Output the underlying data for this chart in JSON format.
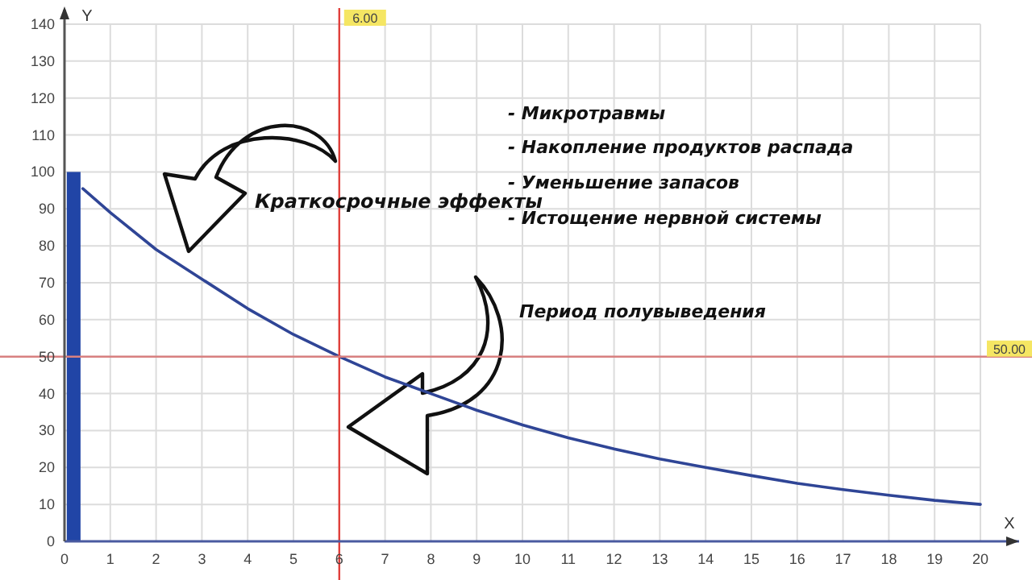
{
  "chart_data": {
    "type": "line",
    "xlabel": "X",
    "ylabel": "Y",
    "xlim": [
      0,
      20
    ],
    "ylim": [
      0,
      140
    ],
    "xticks": [
      0,
      1,
      2,
      3,
      4,
      5,
      6,
      7,
      8,
      9,
      10,
      11,
      12,
      13,
      14,
      15,
      16,
      17,
      18,
      19,
      20
    ],
    "yticks": [
      0,
      10,
      20,
      30,
      40,
      50,
      60,
      70,
      80,
      90,
      100,
      110,
      120,
      130,
      140
    ],
    "grid": true,
    "marker": "none",
    "line_style": "solid",
    "series": [
      {
        "type": "bar",
        "color": "#2145a6",
        "x": [
          0.2
        ],
        "values": [
          100
        ]
      },
      {
        "color": "#2f4596",
        "x": [
          0.4,
          1,
          2,
          3,
          4,
          5,
          6,
          7,
          8,
          9,
          10,
          11,
          12,
          13,
          14,
          15,
          16,
          17,
          18,
          19,
          20
        ],
        "values": [
          95.5,
          89,
          79,
          71,
          63,
          56,
          50,
          44.5,
          40,
          35.5,
          31.5,
          28,
          25,
          22.3,
          20,
          17.8,
          15.7,
          14,
          12.5,
          11.1,
          10
        ]
      }
    ],
    "ref_lines": [
      {
        "axis": "x",
        "value": 6,
        "label": "6.00",
        "color": "#e0403c"
      },
      {
        "axis": "y",
        "value": 50,
        "label": "50.00",
        "color": "#d88080"
      }
    ],
    "annotations": [
      "Краткосрочные эффекты",
      "- Микротравмы",
      "- Накопление продуктов распада",
      "- Уменьшение запасов",
      "- Истощение нервной системы",
      "Период полувыведения"
    ]
  }
}
